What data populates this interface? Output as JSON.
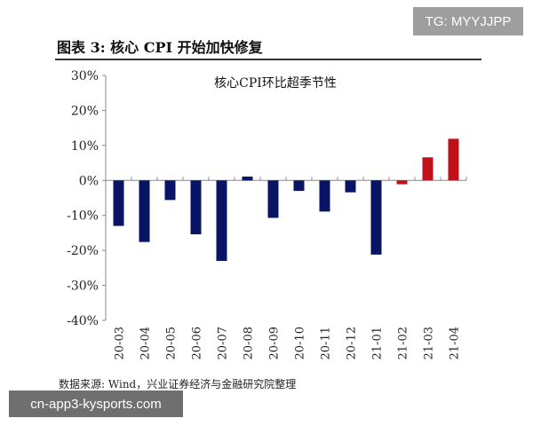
{
  "header": {
    "title": "图表 3: 核心 CPI 开始加快修复",
    "watermark": "TG: MYYJJPP"
  },
  "footer": {
    "source": "数据来源: Wind，兴业证券经济与金融研究院整理",
    "site_watermark": "cn-app3-kysports.com"
  },
  "chart_data": {
    "type": "bar",
    "title": "核心CPI环比超季节性",
    "xlabel": "",
    "ylabel": "",
    "ylim": [
      -40,
      30
    ],
    "yticks": [
      "30%",
      "20%",
      "10%",
      "0%",
      "-10%",
      "-20%",
      "-30%",
      "-40%"
    ],
    "ytick_values": [
      30,
      20,
      10,
      0,
      -10,
      -20,
      -30,
      -40
    ],
    "categories": [
      "20-03",
      "20-04",
      "20-05",
      "20-06",
      "20-07",
      "20-08",
      "20-09",
      "20-10",
      "20-11",
      "20-12",
      "21-01",
      "21-02",
      "21-03",
      "21-04"
    ],
    "values": [
      -13.0,
      -17.6,
      -5.6,
      -15.4,
      -23.0,
      1.1,
      -10.7,
      -3.0,
      -8.9,
      -3.4,
      -21.2,
      -1.1,
      6.6,
      11.9
    ],
    "colors": [
      "#0a1464",
      "#0a1464",
      "#0a1464",
      "#0a1464",
      "#0a1464",
      "#0a1464",
      "#0a1464",
      "#0a1464",
      "#0a1464",
      "#0a1464",
      "#0a1464",
      "#c0101a",
      "#c0101a",
      "#c0101a"
    ],
    "grid": false,
    "legend": "none"
  }
}
